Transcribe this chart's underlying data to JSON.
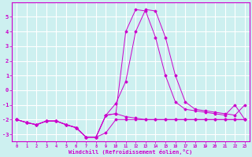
{
  "xlabel": "Windchill (Refroidissement éolien,°C)",
  "background_color": "#cdf0f0",
  "grid_color": "#ffffff",
  "line_color": "#cc00cc",
  "x_values": [
    0,
    1,
    2,
    3,
    4,
    5,
    6,
    7,
    8,
    9,
    10,
    11,
    12,
    13,
    14,
    15,
    16,
    17,
    18,
    19,
    20,
    21,
    22,
    23
  ],
  "series1": [
    -2.0,
    -2.2,
    -2.35,
    -2.1,
    -2.1,
    -2.35,
    -2.55,
    -3.2,
    -3.2,
    -2.9,
    -2.0,
    -2.0,
    -2.0,
    -2.0,
    -2.0,
    -2.0,
    -2.0,
    -2.0,
    -2.0,
    -2.0,
    -2.0,
    -2.0,
    -2.0,
    -2.0
  ],
  "series2": [
    -2.0,
    -2.2,
    -2.35,
    -2.1,
    -2.1,
    -2.35,
    -2.55,
    -3.2,
    -3.2,
    -1.7,
    -1.6,
    -1.8,
    -1.9,
    -2.0,
    -2.0,
    -2.0,
    -2.0,
    -2.0,
    -2.0,
    -2.0,
    -2.0,
    -2.0,
    -2.0,
    -2.0
  ],
  "series3": [
    -2.0,
    -2.2,
    -2.35,
    -2.1,
    -2.1,
    -2.35,
    -2.55,
    -3.2,
    -3.2,
    -1.7,
    -1.6,
    4.0,
    5.5,
    5.4,
    3.6,
    1.0,
    -0.8,
    -1.3,
    -1.4,
    -1.5,
    -1.6,
    -1.7,
    -1.0,
    -2.0
  ],
  "series4": [
    -2.0,
    -2.2,
    -2.35,
    -2.1,
    -2.1,
    -2.35,
    -2.55,
    -3.2,
    -3.2,
    -1.7,
    -0.9,
    0.6,
    4.0,
    5.5,
    5.4,
    3.6,
    1.0,
    -0.8,
    -1.3,
    -1.4,
    -1.5,
    -1.6,
    -1.7,
    -1.0
  ],
  "ylim": [
    -3.5,
    6.0
  ],
  "xlim": [
    -0.5,
    23.5
  ],
  "yticks": [
    -3,
    -2,
    -1,
    0,
    1,
    2,
    3,
    4,
    5
  ],
  "xticks": [
    0,
    1,
    2,
    3,
    4,
    5,
    6,
    7,
    8,
    9,
    10,
    11,
    12,
    13,
    14,
    15,
    16,
    17,
    18,
    19,
    20,
    21,
    22,
    23
  ]
}
